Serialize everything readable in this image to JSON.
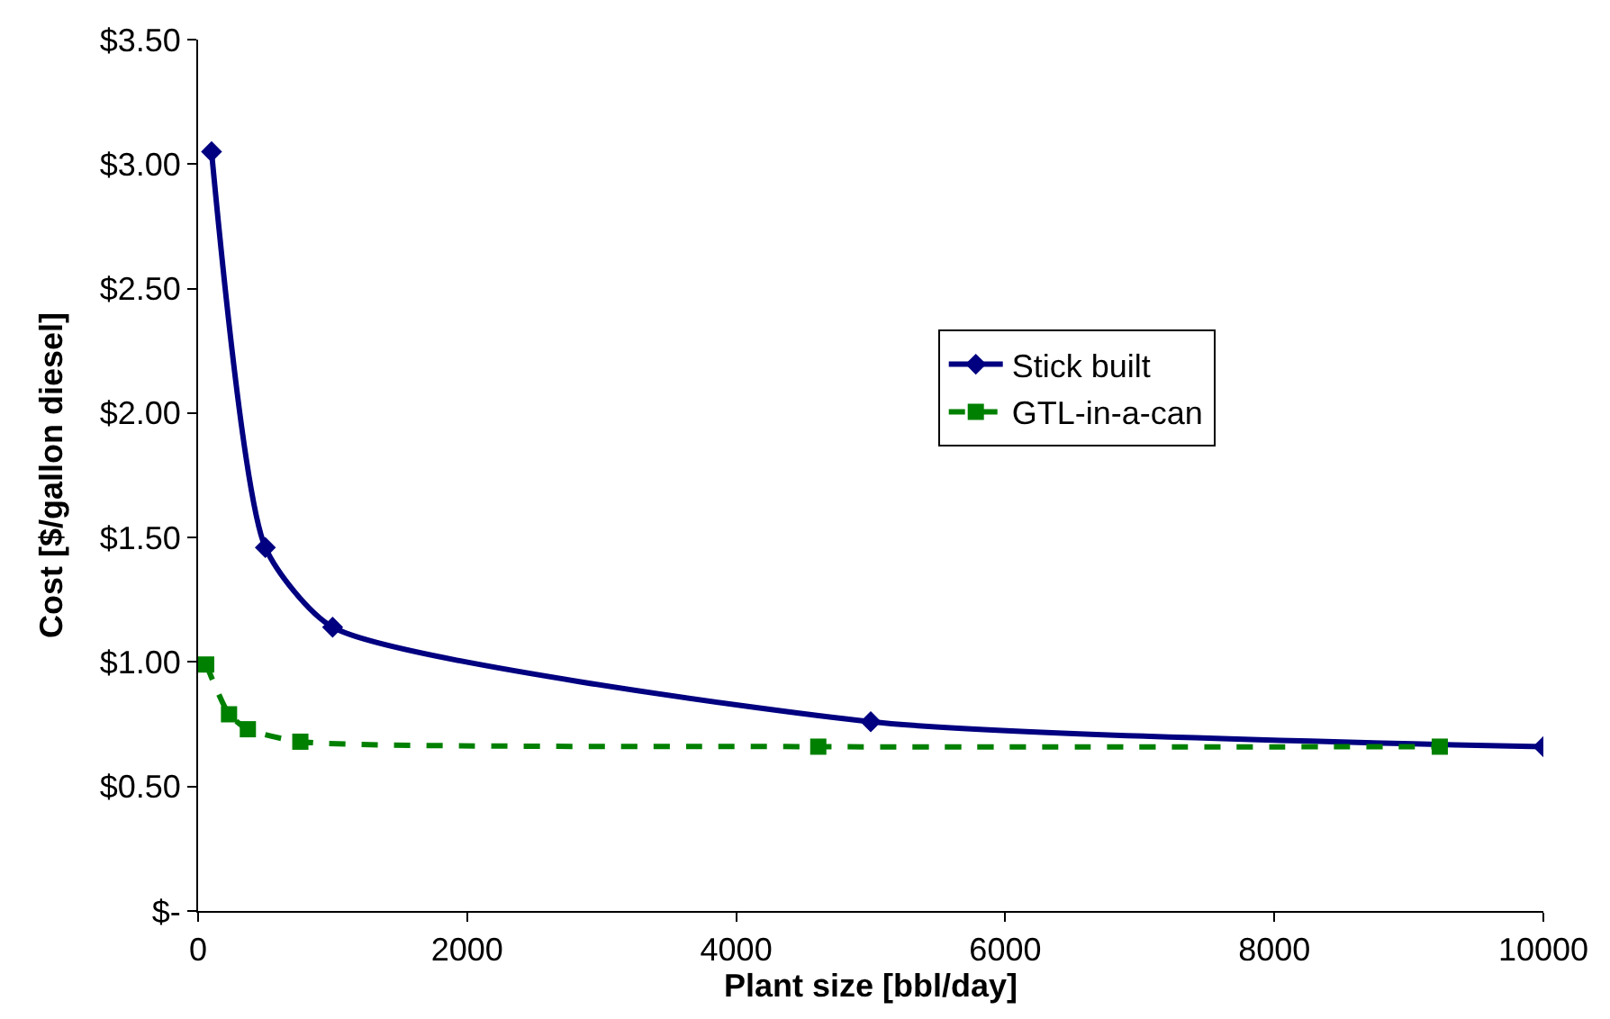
{
  "chart_data": {
    "type": "line",
    "xlabel": "Plant size [bbl/day]",
    "ylabel": "Cost [$/gallon diesel]",
    "series": [
      {
        "name": "Stick built",
        "color": "#000080",
        "marker": "diamond",
        "line_style": "solid",
        "x": [
          100,
          500,
          1000,
          5000,
          10000
        ],
        "values": [
          3.05,
          1.46,
          1.14,
          0.76,
          0.66
        ]
      },
      {
        "name": "GTL-in-a-can",
        "color": "#008000",
        "marker": "square",
        "line_style": "dashed",
        "x": [
          60,
          230,
          370,
          760,
          4610,
          9230
        ],
        "values": [
          0.99,
          0.79,
          0.73,
          0.68,
          0.66,
          0.66
        ]
      }
    ],
    "xlim": [
      0,
      10000
    ],
    "xticks": [
      0,
      2000,
      4000,
      6000,
      8000,
      10000
    ],
    "ylim": [
      0,
      3.5
    ],
    "yticks": [
      {
        "value": 0,
        "label": "$-"
      },
      {
        "value": 0.5,
        "label": "$0.50"
      },
      {
        "value": 1,
        "label": "$1.00"
      },
      {
        "value": 1.5,
        "label": "$1.50"
      },
      {
        "value": 2,
        "label": "$2.00"
      },
      {
        "value": 2.5,
        "label": "$2.50"
      },
      {
        "value": 3,
        "label": "$3.00"
      },
      {
        "value": 3.5,
        "label": "$3.50"
      }
    ],
    "legend": "right"
  }
}
